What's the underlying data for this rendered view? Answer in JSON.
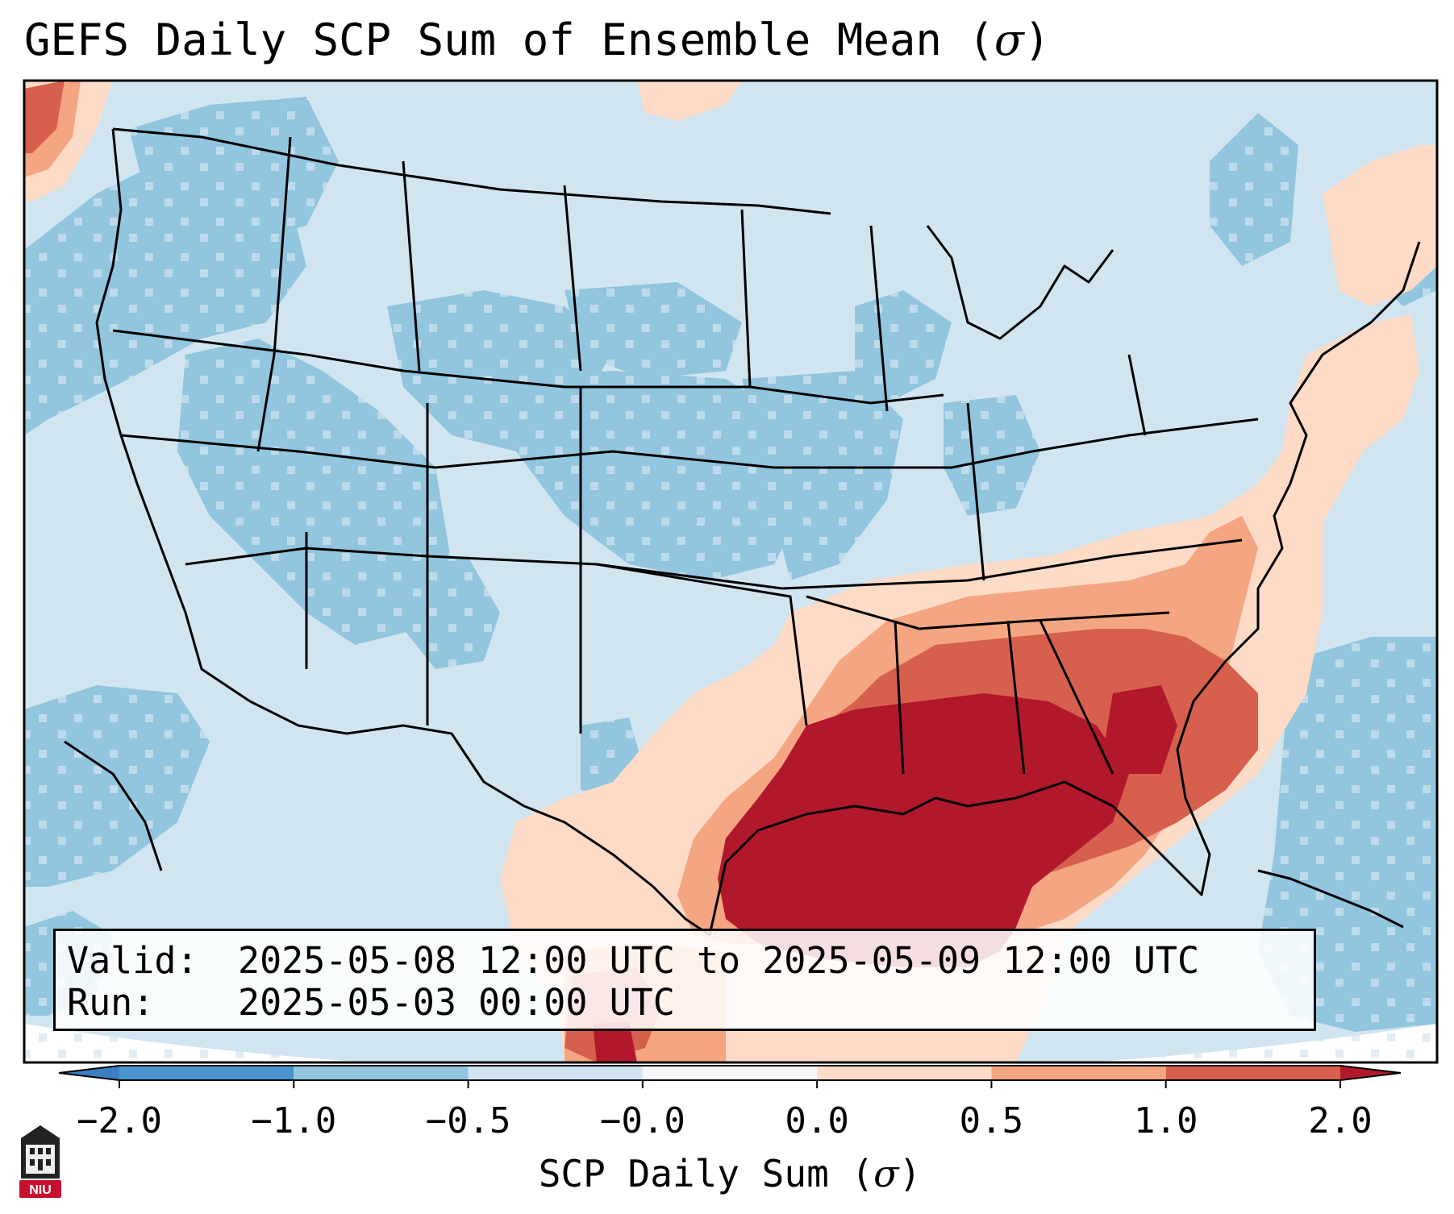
{
  "title": "GEFS Daily SCP Sum of Ensemble Mean (",
  "title_symbol": "σ",
  "title_close": ")",
  "info": {
    "valid_label": "Valid:",
    "valid_value": "2025-05-08 12:00 UTC to 2025-05-09 12:00 UTC",
    "run_label": "Run:",
    "run_value": "2025-05-03 00:00 UTC"
  },
  "colorbar": {
    "ticks": [
      "−2.0",
      "−1.0",
      "−0.5",
      "−0.0",
      "0.0",
      "0.5",
      "1.0",
      "2.0"
    ],
    "label": "SCP Daily Sum (",
    "label_symbol": "σ",
    "label_close": ")",
    "bins": [
      {
        "range": "< -2.0",
        "color": "#3b7fc0"
      },
      {
        "range": "-2.0 to -1.0",
        "color": "#4a93cc"
      },
      {
        "range": "-1.0 to -0.5",
        "color": "#92c5de"
      },
      {
        "range": "-0.5 to -0.0",
        "color": "#d1e5f0"
      },
      {
        "range": "-0.0 to 0.0",
        "color": "#f7f7f7"
      },
      {
        "range": "0.0 to 0.5",
        "color": "#fddbc7"
      },
      {
        "range": "0.5 to 1.0",
        "color": "#f4a582"
      },
      {
        "range": "1.0 to 2.0",
        "color": "#d6604d"
      },
      {
        "range": "> 2.0",
        "color": "#b2182b"
      }
    ]
  },
  "logo": {
    "text": "NIU",
    "color": "#c8102e"
  },
  "colors": {
    "background_sea": "#d1e5f0",
    "below_half": "#92c5de",
    "above_zero": "#fddbc7",
    "above_half": "#f4a582",
    "above_one": "#d6604d",
    "above_two": "#b2182b",
    "border_lines": "#000000"
  }
}
